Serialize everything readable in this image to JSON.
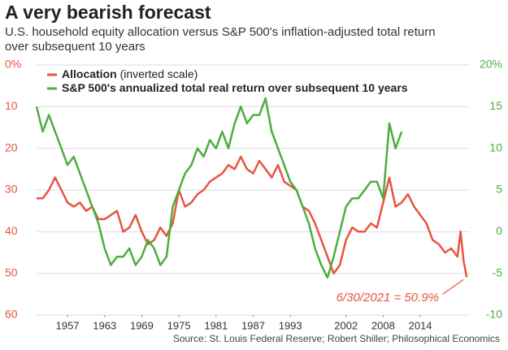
{
  "chart_data": {
    "type": "line",
    "title": "A very bearish forecast",
    "subtitle": "U.S. household equity allocation versus S&P 500's inflation-adjusted total return over subsequent 10 years",
    "source": "Source: St. Louis Federal Reserve; Robert Shiller; Philosophical Economics",
    "annotation": "6/30/2021 = 50.9%",
    "xlim": [
      1952,
      2022
    ],
    "xticks": [
      1957,
      1963,
      1969,
      1975,
      1981,
      1987,
      1993,
      2002,
      2008,
      2014
    ],
    "ylim": [
      60,
      0
    ],
    "yticks": [
      {
        "value": 0,
        "label": "0%"
      },
      10,
      20,
      30,
      40,
      50,
      60
    ],
    "y2lim": [
      -10,
      20
    ],
    "y2ticks": [
      {
        "value": 20,
        "label": "20%"
      },
      15,
      10,
      5,
      0,
      -5,
      -10
    ],
    "grid": true,
    "series": [
      {
        "name": "Allocation",
        "name_note": "(inverted scale)",
        "color": "#e8553e",
        "x": [
          1952,
          1953,
          1954,
          1955,
          1956,
          1957,
          1958,
          1959,
          1960,
          1961,
          1962,
          1963,
          1964,
          1965,
          1966,
          1967,
          1968,
          1969,
          1970,
          1971,
          1972,
          1973,
          1974,
          1975,
          1976,
          1977,
          1978,
          1979,
          1980,
          1981,
          1982,
          1983,
          1984,
          1985,
          1986,
          1987,
          1988,
          1989,
          1990,
          1991,
          1992,
          1993,
          1994,
          1995,
          1996,
          1997,
          1998,
          1999,
          2000,
          2001,
          2002,
          2003,
          2004,
          2005,
          2006,
          2007,
          2008,
          2009,
          2010,
          2011,
          2012,
          2013,
          2014,
          2015,
          2016,
          2017,
          2018,
          2019,
          2020,
          2020.5,
          2021,
          2021.5
        ],
        "values": [
          32,
          32,
          30,
          27,
          30,
          33,
          34,
          33,
          35,
          34,
          37,
          37,
          36,
          35,
          40,
          39,
          36,
          40,
          43,
          42,
          39,
          41,
          38,
          30,
          34,
          33,
          31,
          30,
          28,
          27,
          26,
          24,
          25,
          22,
          25,
          26,
          23,
          25,
          27,
          24,
          28,
          29,
          30,
          34,
          35,
          38,
          42,
          46,
          50,
          48,
          42,
          39,
          40,
          40,
          38,
          39,
          33,
          27,
          34,
          33,
          31,
          34,
          36,
          38,
          42,
          43,
          45,
          44,
          46,
          40,
          47,
          50.9
        ]
      },
      {
        "name": "S&P 500's annualized total real return over subsequent 10 years",
        "color": "#4cae3e",
        "axis": "y2",
        "x": [
          1952,
          1953,
          1954,
          1955,
          1956,
          1957,
          1958,
          1959,
          1960,
          1961,
          1962,
          1963,
          1964,
          1965,
          1966,
          1967,
          1968,
          1969,
          1970,
          1971,
          1972,
          1973,
          1974,
          1975,
          1976,
          1977,
          1978,
          1979,
          1980,
          1981,
          1982,
          1983,
          1984,
          1985,
          1986,
          1987,
          1988,
          1989,
          1990,
          1991,
          1992,
          1993,
          1994,
          1995,
          1996,
          1997,
          1998,
          1999,
          2000,
          2001,
          2002,
          2003,
          2004,
          2005,
          2006,
          2007,
          2008,
          2009,
          2010,
          2011
        ],
        "values": [
          15,
          12,
          14,
          12,
          10,
          8,
          9,
          7,
          5,
          3,
          1,
          -2,
          -4,
          -3,
          -3,
          -2,
          -4,
          -3,
          -1,
          -2,
          -4,
          -3,
          3,
          5,
          7,
          8,
          10,
          9,
          11,
          10,
          12,
          10,
          13,
          15,
          13,
          14,
          14,
          16,
          12,
          10,
          8,
          6,
          5,
          3,
          1,
          -2,
          -4,
          -5.5,
          -3,
          0,
          3,
          4,
          4,
          5,
          6,
          6,
          4,
          13,
          10,
          12
        ]
      }
    ]
  }
}
